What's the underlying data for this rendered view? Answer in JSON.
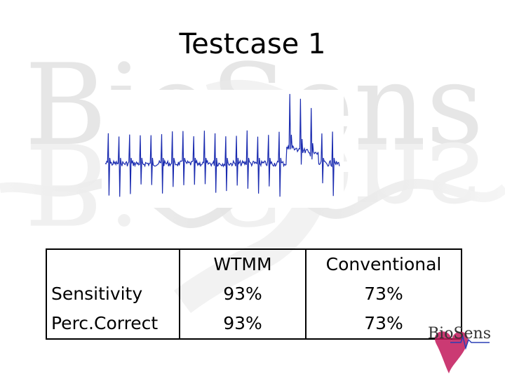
{
  "slide": {
    "title": "Testcase 1",
    "watermark_text": "BioSens",
    "logo_text": "BioSens"
  },
  "colors": {
    "signal": "#1a2bb0",
    "watermark": "#d4d4d4",
    "logo_heart": "#c2185b"
  },
  "table": {
    "header": [
      "",
      "WTMM",
      "Conventional"
    ],
    "rows": [
      [
        "Sensitivity",
        "93%",
        "73%"
      ],
      [
        "Perc.Correct",
        "93%",
        "73%"
      ]
    ]
  }
}
